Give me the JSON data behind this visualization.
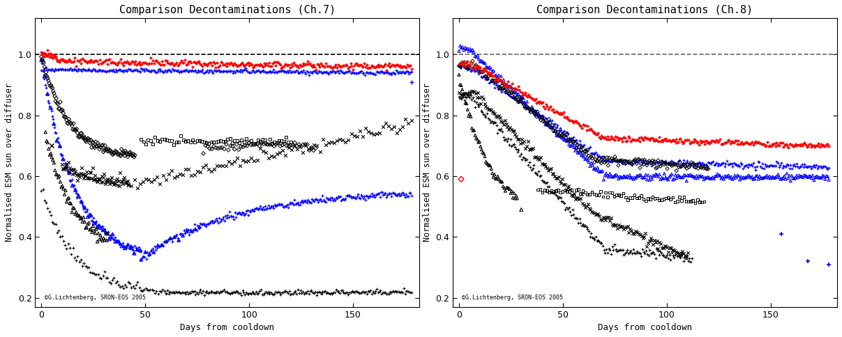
{
  "title_ch7": "Comparison Decontaminations (Ch.7)",
  "title_ch8": "Comparison Decontaminations (Ch.8)",
  "xlabel": "Days from cooldown",
  "ylabel": "Normalised ESM sun over diffuser",
  "xlim": [
    -3,
    182
  ],
  "ylim": [
    0.17,
    1.12
  ],
  "yticks": [
    0.2,
    0.4,
    0.6,
    0.8,
    1.0
  ],
  "xticks": [
    0,
    50,
    100,
    150
  ],
  "dashed_line_y": 1.0,
  "watermark": "©G.Lichtenberg, SRON-EOS 2005",
  "bg_color": "#ffffff"
}
